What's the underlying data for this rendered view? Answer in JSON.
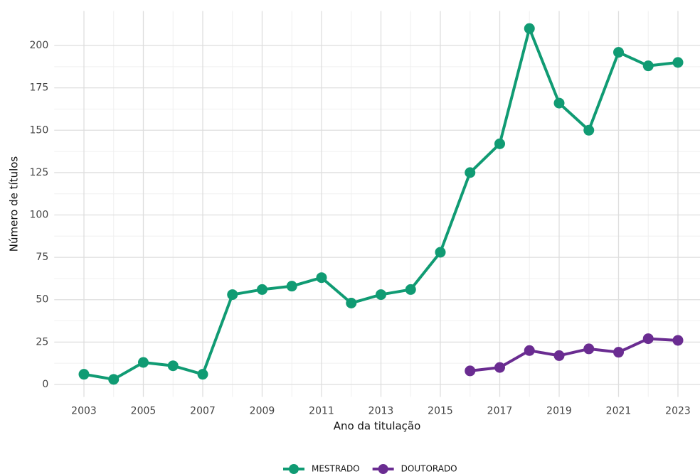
{
  "chart_data": {
    "type": "line",
    "xlabel": "Ano da titulação",
    "ylabel": "Número de títulos",
    "x": [
      2003,
      2004,
      2005,
      2006,
      2007,
      2008,
      2009,
      2010,
      2011,
      2012,
      2013,
      2014,
      2015,
      2016,
      2017,
      2018,
      2019,
      2020,
      2021,
      2022,
      2023
    ],
    "series": [
      {
        "name": "MESTRADO",
        "color": "#109b73",
        "values": [
          6,
          3,
          13,
          11,
          6,
          53,
          56,
          58,
          63,
          48,
          53,
          56,
          78,
          125,
          142,
          210,
          166,
          150,
          196,
          188,
          190
        ]
      },
      {
        "name": "DOUTORADO",
        "color": "#6a2c91",
        "values": [
          null,
          null,
          null,
          null,
          null,
          null,
          null,
          null,
          null,
          null,
          null,
          null,
          null,
          8,
          10,
          20,
          17,
          21,
          19,
          27,
          26
        ]
      }
    ],
    "xlim": [
      2002,
      2024
    ],
    "xticks": [
      2003,
      2005,
      2007,
      2009,
      2011,
      2013,
      2015,
      2017,
      2019,
      2021,
      2023
    ],
    "ylim": [
      -7.35,
      220.35
    ],
    "yticks": [
      0,
      25,
      50,
      75,
      100,
      125,
      150,
      175,
      200
    ],
    "grid": true,
    "legend": "bottom"
  }
}
